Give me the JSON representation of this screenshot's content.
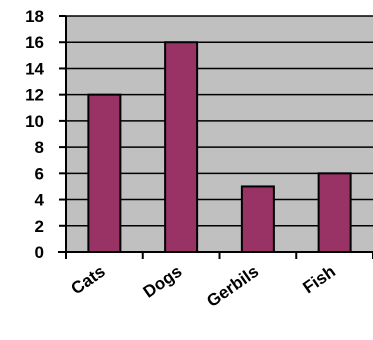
{
  "chart_data": {
    "type": "bar",
    "categories": [
      "Cats",
      "Dogs",
      "Gerbils",
      "Fish"
    ],
    "values": [
      12,
      16,
      5,
      6
    ],
    "ylim": [
      0,
      18
    ],
    "y_ticks": [
      0,
      2,
      4,
      6,
      8,
      10,
      12,
      14,
      16,
      18
    ],
    "grid": true,
    "colors": {
      "plot_background": "#c0c0c0",
      "bar_fill": "#993366",
      "gridline": "#000000",
      "axis": "#000000"
    }
  }
}
